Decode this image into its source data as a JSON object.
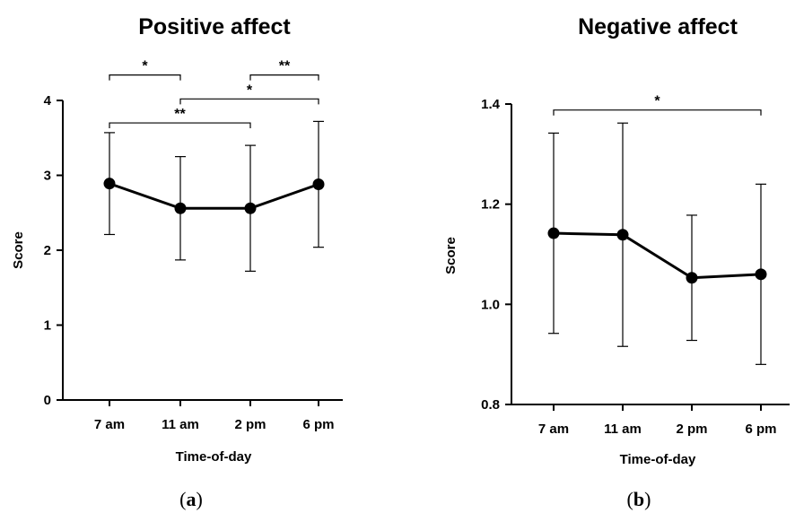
{
  "chart_data": [
    {
      "type": "line",
      "panel": "a",
      "title": "Positive affect",
      "xlabel": "Time-of-day",
      "ylabel": "Score",
      "categories": [
        "7 am",
        "11 am",
        "2 pm",
        "6 pm"
      ],
      "ylim": [
        0,
        4
      ],
      "yticks": [
        0,
        1,
        2,
        3,
        4
      ],
      "series": [
        {
          "values": [
            2.89,
            2.56,
            2.56,
            2.88
          ],
          "error_lower": [
            2.21,
            1.87,
            1.72,
            2.04
          ],
          "error_upper": [
            3.57,
            3.25,
            3.4,
            3.72
          ]
        }
      ],
      "significance": [
        {
          "from": 0,
          "to": 1,
          "y": 4.34,
          "label": "*"
        },
        {
          "from": 2,
          "to": 3,
          "y": 4.34,
          "label": "**"
        },
        {
          "from": 1,
          "to": 3,
          "y": 4.02,
          "label": "*"
        },
        {
          "from": 0,
          "to": 2,
          "y": 3.7,
          "label": "**"
        }
      ],
      "grid": false,
      "legend": "none"
    },
    {
      "type": "line",
      "panel": "b",
      "title": "Negative affect",
      "xlabel": "Time-of-day",
      "ylabel": "Score",
      "categories": [
        "7 am",
        "11 am",
        "2 pm",
        "6 pm"
      ],
      "ylim": [
        0.8,
        1.4
      ],
      "yticks": [
        "0.8",
        "1.0",
        "1.2",
        "1.4"
      ],
      "series": [
        {
          "values": [
            1.142,
            1.139,
            1.053,
            1.06
          ],
          "error_lower": [
            0.942,
            0.916,
            0.928,
            0.88
          ],
          "error_upper": [
            1.342,
            1.362,
            1.178,
            1.24
          ]
        }
      ],
      "significance": [
        {
          "from": 0,
          "to": 3,
          "y": 1.388,
          "label": "*"
        }
      ],
      "grid": false,
      "legend": "none"
    }
  ],
  "panel_labels": [
    {
      "open": "(",
      "letter": "a",
      "close": ")"
    },
    {
      "open": "(",
      "letter": "b",
      "close": ")"
    }
  ]
}
